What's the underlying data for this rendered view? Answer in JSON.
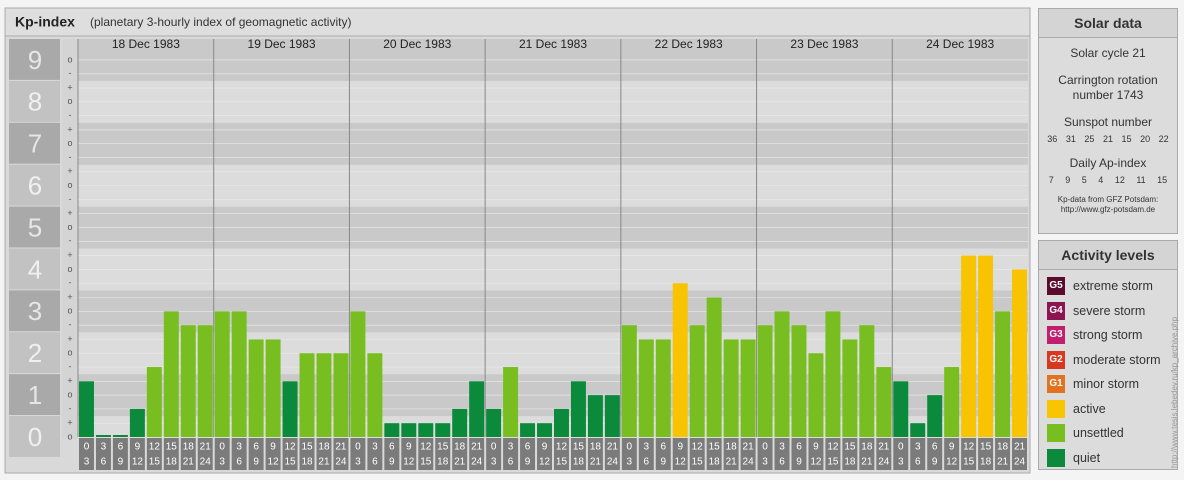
{
  "chart_data": {
    "type": "bar",
    "title": "Kp-index",
    "subtitle": "(planetary 3-hourly index of geomagnetic activity)",
    "days": [
      "18 Dec 1983",
      "19 Dec 1983",
      "20 Dec 1983",
      "21 Dec 1983",
      "22 Dec 1983",
      "23 Dec 1983",
      "24 Dec 1983"
    ],
    "time_labels": [
      [
        "0",
        "3"
      ],
      [
        "3",
        "6"
      ],
      [
        "6",
        "9"
      ],
      [
        "9",
        "12"
      ],
      [
        "12",
        "15"
      ],
      [
        "15",
        "18"
      ],
      [
        "18",
        "21"
      ],
      [
        "21",
        "24"
      ]
    ],
    "values": [
      1.33,
      0,
      0,
      0.67,
      1.67,
      3,
      2.67,
      2.67,
      3,
      3,
      2.33,
      2.33,
      1.33,
      2,
      2,
      2,
      3,
      2,
      0.33,
      0.33,
      0.33,
      0.33,
      0.67,
      1.33,
      0.67,
      1.67,
      0.33,
      0.33,
      0.67,
      1.33,
      1,
      1,
      2.67,
      2.33,
      2.33,
      3.67,
      2.67,
      3.33,
      2.33,
      2.33,
      2.67,
      3,
      2.67,
      2,
      3,
      2.33,
      2.67,
      1.67,
      1.33,
      0.33,
      1,
      1.67,
      4.33,
      4.33,
      3,
      4
    ],
    "colors": [
      "#0b8a3c",
      "#0b8a3c",
      "#0b8a3c",
      "#0b8a3c",
      "#78be20",
      "#78be20",
      "#78be20",
      "#78be20",
      "#78be20",
      "#78be20",
      "#78be20",
      "#78be20",
      "#0b8a3c",
      "#78be20",
      "#78be20",
      "#78be20",
      "#78be20",
      "#78be20",
      "#0b8a3c",
      "#0b8a3c",
      "#0b8a3c",
      "#0b8a3c",
      "#0b8a3c",
      "#0b8a3c",
      "#0b8a3c",
      "#78be20",
      "#0b8a3c",
      "#0b8a3c",
      "#0b8a3c",
      "#0b8a3c",
      "#0b8a3c",
      "#0b8a3c",
      "#78be20",
      "#78be20",
      "#78be20",
      "#f8c300",
      "#78be20",
      "#78be20",
      "#78be20",
      "#78be20",
      "#78be20",
      "#78be20",
      "#78be20",
      "#78be20",
      "#78be20",
      "#78be20",
      "#78be20",
      "#78be20",
      "#0b8a3c",
      "#0b8a3c",
      "#0b8a3c",
      "#78be20",
      "#f8c300",
      "#f8c300",
      "#78be20",
      "#f8c300"
    ],
    "ylim": [
      0,
      9.5
    ],
    "yticks": [
      0,
      1,
      2,
      3,
      4,
      5,
      6,
      7,
      8,
      9
    ],
    "minor_yticks": [
      {
        "value": 0,
        "label": "o"
      },
      {
        "value": 0.33,
        "label": "+"
      },
      {
        "value": 0.67,
        "label": "-"
      },
      {
        "value": 1,
        "label": "o"
      },
      {
        "value": 1.33,
        "label": "+"
      },
      {
        "value": 1.67,
        "label": "-"
      },
      {
        "value": 2,
        "label": "o"
      },
      {
        "value": 2.33,
        "label": "+"
      },
      {
        "value": 2.67,
        "label": "-"
      },
      {
        "value": 3,
        "label": "o"
      },
      {
        "value": 3.33,
        "label": "+"
      },
      {
        "value": 3.67,
        "label": "-"
      },
      {
        "value": 4,
        "label": "o"
      },
      {
        "value": 4.33,
        "label": "+"
      },
      {
        "value": 4.67,
        "label": "-"
      },
      {
        "value": 5,
        "label": "o"
      },
      {
        "value": 5.33,
        "label": "+"
      },
      {
        "value": 5.67,
        "label": "-"
      },
      {
        "value": 6,
        "label": "o"
      },
      {
        "value": 6.33,
        "label": "+"
      },
      {
        "value": 6.67,
        "label": "-"
      },
      {
        "value": 7,
        "label": "o"
      },
      {
        "value": 7.33,
        "label": "+"
      },
      {
        "value": 7.67,
        "label": "-"
      },
      {
        "value": 8,
        "label": "o"
      },
      {
        "value": 8.33,
        "label": "+"
      },
      {
        "value": 8.67,
        "label": "-"
      },
      {
        "value": 9,
        "label": "o"
      }
    ],
    "grid": true
  },
  "solar_data": {
    "title": "Solar data",
    "solar_cycle": "Solar cycle 21",
    "carrington_1": "Carrington rotation",
    "carrington_2": "number 1743",
    "sunspot_title": "Sunspot number",
    "sunspot_numbers": [
      36,
      31,
      25,
      21,
      15,
      20,
      22
    ],
    "ap_title": "Daily Ap-index",
    "ap_index": [
      7,
      9,
      5,
      4,
      12,
      11,
      15
    ],
    "source_1": "Kp-data from GFZ Potsdam:",
    "source_2": "http://www.gfz-potsdam.de"
  },
  "activity_levels": {
    "title": "Activity levels",
    "items": [
      {
        "badge": "G5",
        "name": "extreme storm",
        "color": "#5c0a2e"
      },
      {
        "badge": "G4",
        "name": "severe storm",
        "color": "#8c1450"
      },
      {
        "badge": "G3",
        "name": "strong storm",
        "color": "#c21e70"
      },
      {
        "badge": "G2",
        "name": "moderate storm",
        "color": "#d8391e"
      },
      {
        "badge": "G1",
        "name": "minor storm",
        "color": "#e27220"
      },
      {
        "name": "active",
        "color": "#f8c300"
      },
      {
        "name": "unsettled",
        "color": "#78be20"
      },
      {
        "name": "quiet",
        "color": "#0b8a3c"
      }
    ]
  },
  "watermark": "http://www.tesis.lebedev.ru/kp_archive.php"
}
